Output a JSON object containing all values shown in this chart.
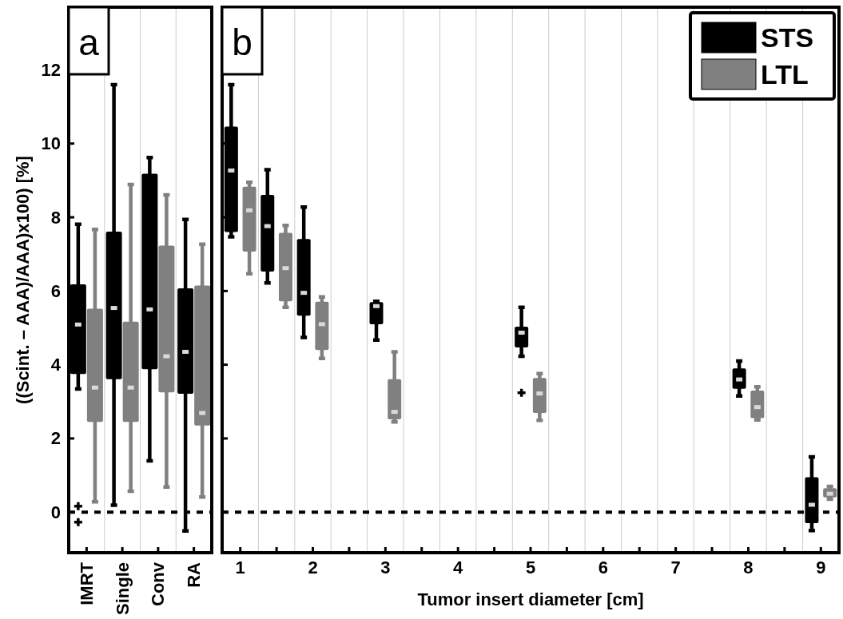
{
  "chart_data": [
    {
      "type": "box",
      "title": "a",
      "ylabel": "((Scint. – AAA)/AAA)x100) [%]",
      "categories": [
        "IMRT",
        "Single",
        "Conv",
        "RA"
      ],
      "ylim": [
        -1.1,
        13.7
      ],
      "yticks": [
        0,
        2,
        4,
        6,
        8,
        10,
        12
      ],
      "grid": "x",
      "legend": false,
      "ref_lines": [
        {
          "axis": "y",
          "value": 0,
          "line_style": "dotted",
          "color": "#000000"
        }
      ],
      "series": [
        {
          "color": "#000000",
          "boxes": [
            {
              "low": 3.34,
              "q1": 3.75,
              "median": 5.09,
              "q3": 6.18,
              "high": 7.81,
              "outliers": [
                0.16,
                -0.27
              ]
            },
            {
              "low": 0.19,
              "q1": 3.61,
              "median": 5.54,
              "q3": 7.61,
              "high": 11.6
            },
            {
              "low": 1.39,
              "q1": 3.88,
              "median": 5.5,
              "q3": 9.18,
              "high": 9.62
            },
            {
              "low": -0.51,
              "q1": 3.21,
              "median": 4.35,
              "q3": 6.07,
              "high": 7.94
            }
          ]
        },
        {
          "color": "#808080",
          "boxes": [
            {
              "low": 0.28,
              "q1": 2.45,
              "median": 3.38,
              "q3": 5.52,
              "high": 7.67
            },
            {
              "low": 0.57,
              "q1": 2.45,
              "median": 3.38,
              "q3": 5.17,
              "high": 8.89
            },
            {
              "low": 0.68,
              "q1": 3.25,
              "median": 4.23,
              "q3": 7.23,
              "high": 8.61
            },
            {
              "low": 0.41,
              "q1": 2.35,
              "median": 2.69,
              "q3": 6.15,
              "high": 7.27
            }
          ]
        }
      ]
    },
    {
      "type": "box",
      "title": "b",
      "xlabel": "Tumor insert diameter [cm]",
      "xlim": [
        0.75,
        9.25
      ],
      "xticks": [
        1,
        {
          "value": 1.5,
          "label": null
        },
        2,
        {
          "value": 2.5,
          "label": null
        },
        3,
        {
          "value": 3.5,
          "label": null
        },
        4,
        {
          "value": 4.5,
          "label": null
        },
        5,
        {
          "value": 5.5,
          "label": null
        },
        6,
        {
          "value": 6.5,
          "label": null
        },
        7,
        {
          "value": 7.5,
          "label": null
        },
        8,
        {
          "value": 8.5,
          "label": null
        },
        9
      ],
      "ylim": [
        -1.1,
        13.7
      ],
      "yticks": [
        0,
        2,
        4,
        6,
        8,
        10,
        12
      ],
      "tick_labels": "x",
      "grid": "x",
      "legend": "top right",
      "ref_lines": [
        {
          "axis": "y",
          "value": 0,
          "line_style": "dotted",
          "color": "#000000"
        }
      ],
      "series": [
        {
          "name": "STS",
          "color": "#000000",
          "x": [
            0.875,
            1.375,
            1.875,
            2.875,
            4.875,
            7.875,
            8.875
          ],
          "boxes": [
            {
              "low": 7.47,
              "q1": 7.6,
              "median": 9.27,
              "q3": 10.46,
              "high": 11.6
            },
            {
              "low": 6.22,
              "q1": 6.53,
              "median": 7.76,
              "q3": 8.61,
              "high": 9.29
            },
            {
              "low": 4.74,
              "q1": 5.33,
              "median": 5.95,
              "q3": 7.41,
              "high": 8.28
            },
            {
              "low": 4.67,
              "q1": 5.1,
              "median": 5.59,
              "q3": 5.7,
              "high": 5.72
            },
            {
              "low": 4.23,
              "q1": 4.47,
              "median": 4.87,
              "q3": 5.03,
              "high": 5.56,
              "outliers": [
                3.24
              ]
            },
            {
              "low": 3.15,
              "q1": 3.35,
              "median": 3.6,
              "q3": 3.9,
              "high": 4.1
            },
            {
              "low": -0.5,
              "q1": -0.3,
              "median": 0.2,
              "q3": 0.95,
              "high": 1.5
            }
          ]
        },
        {
          "name": "LTL",
          "color": "#808080",
          "x": [
            1.125,
            1.625,
            2.125,
            3.125,
            5.125,
            8.125,
            9.125
          ],
          "boxes": [
            {
              "low": 6.47,
              "q1": 7.07,
              "median": 8.19,
              "q3": 8.83,
              "high": 8.95
            },
            {
              "low": 5.56,
              "q1": 5.72,
              "median": 6.62,
              "q3": 7.58,
              "high": 7.78
            },
            {
              "low": 4.17,
              "q1": 4.4,
              "median": 5.1,
              "q3": 5.71,
              "high": 5.84
            },
            {
              "low": 2.45,
              "q1": 2.52,
              "median": 2.72,
              "q3": 3.61,
              "high": 4.35
            },
            {
              "low": 2.49,
              "q1": 2.69,
              "median": 3.22,
              "q3": 3.64,
              "high": 3.76
            },
            {
              "low": 2.5,
              "q1": 2.55,
              "median": 2.85,
              "q3": 3.3,
              "high": 3.4
            },
            {
              "low": 0.35,
              "q1": 0.4,
              "median": 0.5,
              "q3": 0.65,
              "high": 0.7
            }
          ]
        }
      ]
    }
  ]
}
